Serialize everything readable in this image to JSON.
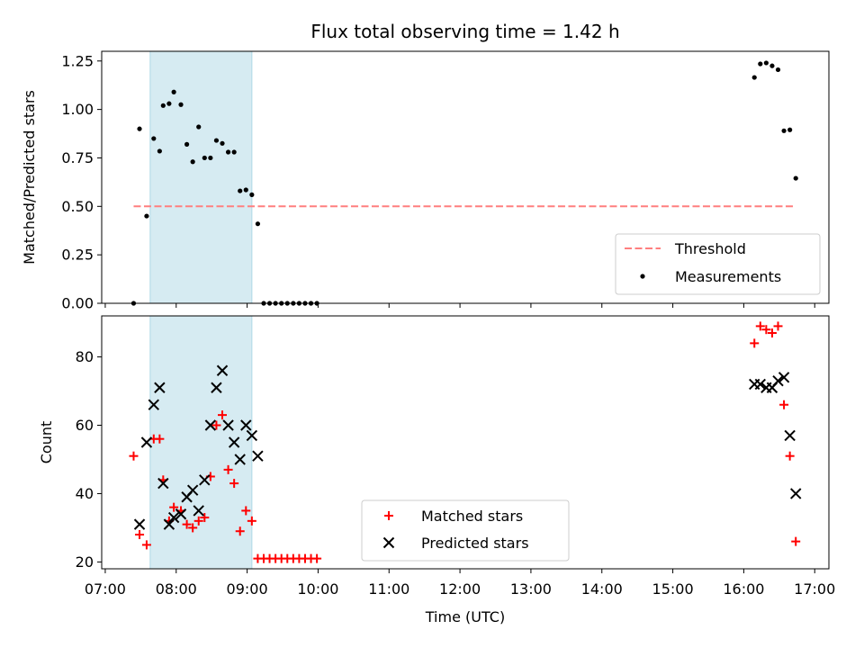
{
  "chart_data": [
    {
      "type": "scatter",
      "title": "Flux total observing time = 1.42 h",
      "ylabel": "Matched/Predicted stars",
      "xlabel": "",
      "ylim": [
        0,
        1.3
      ],
      "yticks": [
        "0.00",
        "0.25",
        "0.50",
        "0.75",
        "1.00",
        "1.25"
      ],
      "shaded_span": [
        "07:38",
        "09:04"
      ],
      "threshold": {
        "name": "Threshold",
        "y": 0.5,
        "x": [
          "07:24",
          "16:44"
        ],
        "color": "#ff7f7f",
        "style": "dashed"
      },
      "series": [
        {
          "name": "Measurements",
          "marker": "dot",
          "color": "#000000",
          "points": [
            [
              "07:24",
              0.0
            ],
            [
              "07:29",
              0.9
            ],
            [
              "07:35",
              0.45
            ],
            [
              "07:41",
              0.85
            ],
            [
              "07:46",
              0.785
            ],
            [
              "07:49",
              1.02
            ],
            [
              "07:54",
              1.03
            ],
            [
              "07:58",
              1.09
            ],
            [
              "08:04",
              1.025
            ],
            [
              "08:09",
              0.82
            ],
            [
              "08:14",
              0.73
            ],
            [
              "08:19",
              0.91
            ],
            [
              "08:24",
              0.75
            ],
            [
              "08:29",
              0.75
            ],
            [
              "08:34",
              0.84
            ],
            [
              "08:39",
              0.825
            ],
            [
              "08:44",
              0.78
            ],
            [
              "08:49",
              0.78
            ],
            [
              "08:54",
              0.58
            ],
            [
              "08:59",
              0.585
            ],
            [
              "09:04",
              0.56
            ],
            [
              "09:09",
              0.41
            ],
            [
              "09:14",
              0.0
            ],
            [
              "09:19",
              0.0
            ],
            [
              "09:24",
              0.0
            ],
            [
              "09:29",
              0.0
            ],
            [
              "09:34",
              0.0
            ],
            [
              "09:39",
              0.0
            ],
            [
              "09:44",
              0.0
            ],
            [
              "09:49",
              0.0
            ],
            [
              "09:54",
              0.0
            ],
            [
              "09:59",
              0.0
            ],
            [
              "16:09",
              1.165
            ],
            [
              "16:14",
              1.235
            ],
            [
              "16:19",
              1.24
            ],
            [
              "16:24",
              1.225
            ],
            [
              "16:29",
              1.205
            ],
            [
              "16:34",
              0.89
            ],
            [
              "16:39",
              0.895
            ],
            [
              "16:44",
              0.645
            ]
          ]
        }
      ],
      "legend": {
        "position": "lower-right",
        "entries": [
          "Threshold",
          "Measurements"
        ]
      }
    },
    {
      "type": "scatter",
      "ylabel": "Count",
      "xlabel": "Time (UTC)",
      "ylim": [
        18,
        92
      ],
      "yticks": [
        "20",
        "40",
        "60",
        "80"
      ],
      "xticks": [
        "07:00",
        "08:00",
        "09:00",
        "10:00",
        "11:00",
        "12:00",
        "13:00",
        "14:00",
        "15:00",
        "16:00",
        "17:00"
      ],
      "shaded_span": [
        "07:38",
        "09:04"
      ],
      "series": [
        {
          "name": "Matched stars",
          "marker": "plus",
          "color": "#ff0000",
          "points": [
            [
              "07:24",
              51
            ],
            [
              "07:29",
              28
            ],
            [
              "07:35",
              25
            ],
            [
              "07:41",
              56
            ],
            [
              "07:46",
              56
            ],
            [
              "07:49",
              44
            ],
            [
              "07:54",
              32
            ],
            [
              "07:58",
              36
            ],
            [
              "08:04",
              35
            ],
            [
              "08:09",
              31
            ],
            [
              "08:14",
              30
            ],
            [
              "08:19",
              32
            ],
            [
              "08:24",
              33
            ],
            [
              "08:29",
              45
            ],
            [
              "08:34",
              60
            ],
            [
              "08:39",
              63
            ],
            [
              "08:44",
              47
            ],
            [
              "08:49",
              43
            ],
            [
              "08:54",
              29
            ],
            [
              "08:59",
              35
            ],
            [
              "09:04",
              32
            ],
            [
              "09:09",
              21
            ],
            [
              "09:14",
              21
            ],
            [
              "09:19",
              21
            ],
            [
              "09:24",
              21
            ],
            [
              "09:29",
              21
            ],
            [
              "09:34",
              21
            ],
            [
              "09:39",
              21
            ],
            [
              "09:44",
              21
            ],
            [
              "09:49",
              21
            ],
            [
              "09:54",
              21
            ],
            [
              "09:59",
              21
            ],
            [
              "16:09",
              84
            ],
            [
              "16:14",
              89
            ],
            [
              "16:19",
              88
            ],
            [
              "16:24",
              87
            ],
            [
              "16:29",
              89
            ],
            [
              "16:34",
              66
            ],
            [
              "16:39",
              51
            ],
            [
              "16:44",
              26
            ]
          ]
        },
        {
          "name": "Predicted stars",
          "marker": "x",
          "color": "#000000",
          "points": [
            [
              "07:29",
              31
            ],
            [
              "07:35",
              55
            ],
            [
              "07:41",
              66
            ],
            [
              "07:46",
              71
            ],
            [
              "07:49",
              43
            ],
            [
              "07:54",
              31
            ],
            [
              "07:58",
              33
            ],
            [
              "08:04",
              34
            ],
            [
              "08:09",
              39
            ],
            [
              "08:14",
              41
            ],
            [
              "08:19",
              35
            ],
            [
              "08:24",
              44
            ],
            [
              "08:29",
              60
            ],
            [
              "08:34",
              71
            ],
            [
              "08:39",
              76
            ],
            [
              "08:44",
              60
            ],
            [
              "08:49",
              55
            ],
            [
              "08:54",
              50
            ],
            [
              "08:59",
              60
            ],
            [
              "09:04",
              57
            ],
            [
              "09:09",
              51
            ],
            [
              "16:09",
              72
            ],
            [
              "16:14",
              72
            ],
            [
              "16:19",
              71
            ],
            [
              "16:24",
              71
            ],
            [
              "16:29",
              73
            ],
            [
              "16:34",
              74
            ],
            [
              "16:39",
              57
            ],
            [
              "16:44",
              40
            ]
          ]
        }
      ],
      "legend": {
        "position": "lower-center",
        "entries": [
          "Matched stars",
          "Predicted stars"
        ]
      }
    }
  ],
  "colors": {
    "shade": "#add8e6",
    "threshold": "#ff7f7f",
    "matched": "#ff0000",
    "predicted": "#000000"
  }
}
